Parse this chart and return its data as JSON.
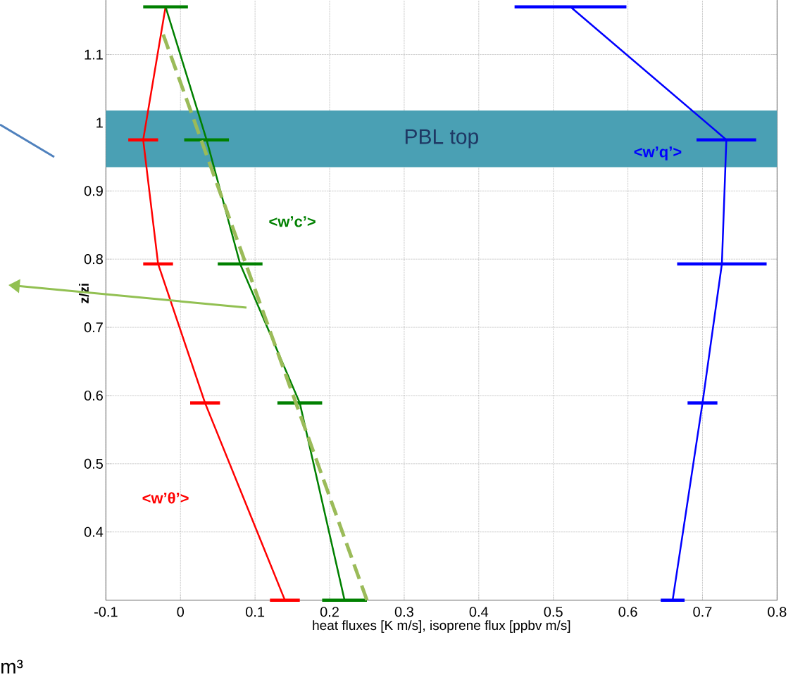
{
  "chart_data": {
    "type": "line",
    "xlabel": "heat fluxes [K m/s], isoprene flux [ppbv m/s]",
    "ylabel": "z/zi",
    "xlim": [
      -0.1,
      0.8
    ],
    "xticks": [
      -0.1,
      0,
      0.1,
      0.2,
      0.3,
      0.4,
      0.5,
      0.6,
      0.7,
      0.8
    ],
    "ylim": [
      0.3,
      1.2
    ],
    "yticks": [
      0.4,
      0.5,
      0.6,
      0.7,
      0.8,
      0.9,
      1,
      1.1
    ],
    "grid": true,
    "marker": "none",
    "series": [
      {
        "name": "<w’θ’>",
        "color": "#ff0000",
        "x": [
          0.14,
          0.033,
          -0.03,
          -0.05,
          -0.02
        ],
        "values": [
          0.3,
          0.589,
          0.793,
          0.975,
          1.17
        ],
        "xerrors": [
          0.02,
          0.02,
          0.02,
          0.02,
          null
        ]
      },
      {
        "name": "<w’c’>",
        "color": "#008000",
        "x": [
          0.22,
          0.16,
          0.08,
          0.035,
          -0.02
        ],
        "values": [
          0.3,
          0.589,
          0.793,
          0.975,
          1.17
        ],
        "xerrors": [
          0.03,
          0.03,
          0.03,
          0.03,
          0.03
        ]
      },
      {
        "name": "<w’q’>",
        "color": "#0000ff",
        "x": [
          0.66,
          0.7,
          0.726,
          0.732,
          0.523
        ],
        "values": [
          0.3,
          0.589,
          0.793,
          0.975,
          1.17
        ],
        "xerrors": [
          0.016,
          0.02,
          0.06,
          0.04,
          0.075
        ]
      },
      {
        "color": "#9bbb59",
        "line_style": "dashed",
        "x": [
          0.25,
          -0.025
        ],
        "values": [
          0.3,
          1.135
        ]
      }
    ],
    "bands": [
      {
        "axis": "y",
        "from": 0.935,
        "to": 1.018,
        "label": "PBL top",
        "color": "#4aa0b4"
      }
    ],
    "annotations": [
      "m³"
    ]
  }
}
